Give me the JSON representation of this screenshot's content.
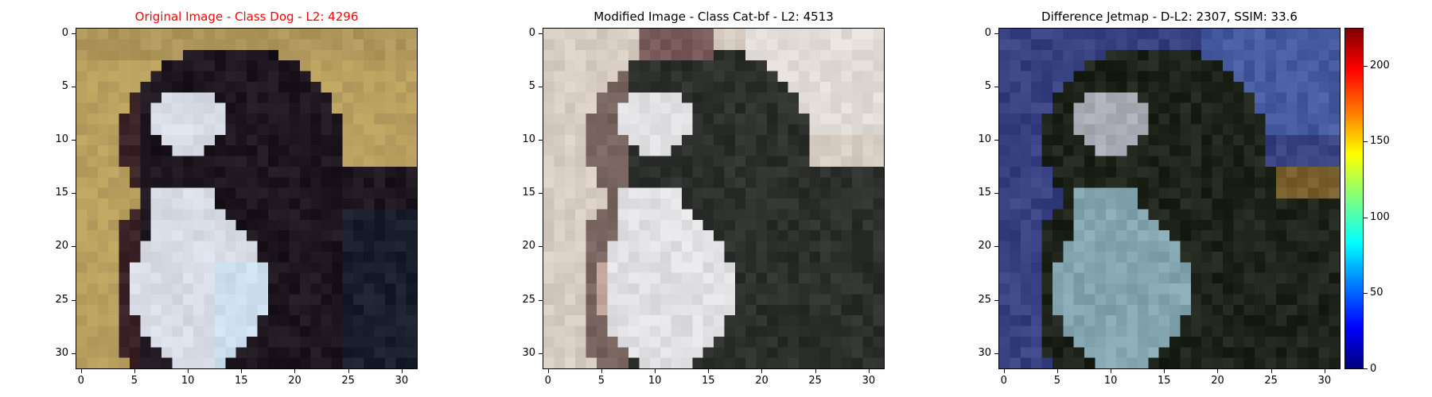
{
  "panels": [
    {
      "title": "Original Image - Class Dog - L2: 4296",
      "title_color": "#ff0000",
      "image_content": "dog-original",
      "x_ticks": [
        "0",
        "5",
        "10",
        "15",
        "20",
        "25",
        "30"
      ],
      "y_ticks": [
        "0",
        "5",
        "10",
        "15",
        "20",
        "25",
        "30"
      ]
    },
    {
      "title": "Modified Image - Class Cat-bf - L2: 4513",
      "title_color": "#000000",
      "image_content": "dog-modified",
      "x_ticks": [
        "0",
        "5",
        "10",
        "15",
        "20",
        "25",
        "30"
      ],
      "y_ticks": [
        "0",
        "5",
        "10",
        "15",
        "20",
        "25",
        "30"
      ]
    },
    {
      "title": "Difference Jetmap - D-L2: 2307, SSIM: 33.6",
      "title_color": "#000000",
      "image_content": "difference-jetmap",
      "x_ticks": [
        "0",
        "5",
        "10",
        "15",
        "20",
        "25",
        "30"
      ],
      "y_ticks": [
        "0",
        "5",
        "10",
        "15",
        "20",
        "25",
        "30"
      ]
    }
  ],
  "colorbar": {
    "ticks": [
      "0",
      "50",
      "100",
      "150",
      "200"
    ],
    "colormap": "jet",
    "range": [
      0,
      225
    ]
  }
}
